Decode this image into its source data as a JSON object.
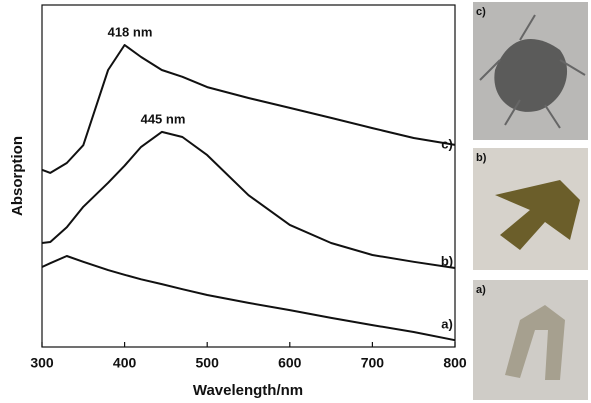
{
  "chart_data": {
    "type": "line",
    "xlabel": "Wavelength/nm",
    "ylabel": "Absorption",
    "x": [
      300,
      310,
      330,
      350,
      380,
      400,
      420,
      445,
      470,
      500,
      550,
      600,
      650,
      700,
      750,
      800
    ],
    "series": [
      {
        "name": "a)",
        "color": "#111111",
        "values": [
          23.4,
          24.5,
          26.6,
          24.9,
          22.5,
          21.1,
          19.8,
          18.4,
          16.9,
          15.2,
          12.9,
          10.8,
          8.5,
          6.4,
          4.4,
          2
        ]
      },
      {
        "name": "b)",
        "color": "#111111",
        "values": [
          30.4,
          30.7,
          35,
          41,
          48,
          53,
          58.5,
          62.9,
          61.4,
          56.1,
          44.4,
          35.7,
          30.4,
          26.9,
          24.9,
          23.1
        ]
      },
      {
        "name": "c)",
        "color": "#111111",
        "values": [
          51.8,
          50.9,
          53.8,
          59,
          81,
          88.3,
          84.8,
          81,
          79,
          76,
          72.8,
          69.9,
          67,
          64,
          61.1,
          59.1
        ]
      }
    ],
    "annotations": [
      "418 nm",
      "445 nm"
    ],
    "xlim": [
      300,
      800
    ],
    "xticks": [
      300,
      400,
      500,
      600,
      700,
      800
    ],
    "ylim": [
      0,
      100
    ],
    "photos": [
      {
        "label": "c)"
      },
      {
        "label": "b)"
      },
      {
        "label": "a)"
      }
    ]
  }
}
